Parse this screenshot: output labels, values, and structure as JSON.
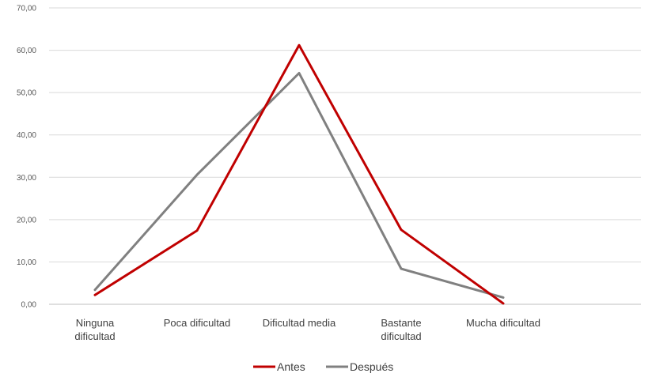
{
  "chart_data": {
    "type": "line",
    "categories": [
      "Ninguna dificultad",
      "Poca dificultad",
      "Dificultad media",
      "Bastante dificultad",
      "Mucha dificultad"
    ],
    "category_lines": [
      [
        "Ninguna",
        "dificultad"
      ],
      [
        "Poca dificultad"
      ],
      [
        "Dificultad media"
      ],
      [
        "Bastante",
        "dificultad"
      ],
      [
        "Mucha dificultad"
      ]
    ],
    "series": [
      {
        "name": "Antes",
        "color": "#C00000",
        "values": [
          2.2,
          17.4,
          61.2,
          17.6,
          0.2
        ]
      },
      {
        "name": "Después",
        "color": "#808080",
        "values": [
          3.4,
          30.6,
          54.6,
          8.4,
          1.6
        ]
      }
    ],
    "ylim": [
      0,
      70
    ],
    "yticks": [
      0,
      10,
      20,
      30,
      40,
      50,
      60,
      70
    ],
    "ytick_labels": [
      "0,00",
      "10,00",
      "20,00",
      "30,00",
      "40,00",
      "50,00",
      "60,00",
      "70,00"
    ],
    "grid": true,
    "legend_position": "bottom",
    "title": "",
    "xlabel": "",
    "ylabel": ""
  }
}
